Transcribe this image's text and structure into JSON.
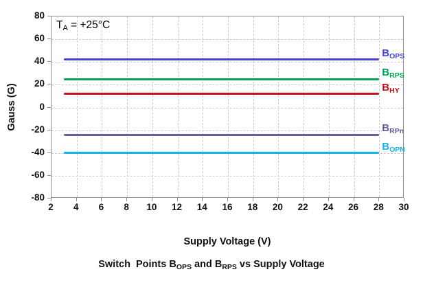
{
  "figure": {
    "background": "#ffffff",
    "grid_color": "#cccccc",
    "axis_border_color": "#8c8c8c",
    "text_color": "#111111"
  },
  "chart_data": {
    "type": "line",
    "title": "Switch Points BOPS and BRPS vs Supply Voltage",
    "title_segments": [
      {
        "text": "Switch  Points B"
      },
      {
        "sub": "OPS"
      },
      {
        "text": " and B"
      },
      {
        "sub": "RPS"
      },
      {
        "text": " vs Supply Voltage"
      }
    ],
    "xlabel": "Supply Voltage (V)",
    "ylabel": "Gauss (G)",
    "annotation": "TA = +25°C",
    "annotation_segments": [
      {
        "text": "T"
      },
      {
        "sub": "A"
      },
      {
        "text": " = +25°C"
      }
    ],
    "x_axis": {
      "min": 2,
      "max": 30,
      "ticks": [
        2,
        4,
        6,
        8,
        10,
        12,
        14,
        16,
        18,
        20,
        22,
        24,
        26,
        28,
        30
      ]
    },
    "y_axis": {
      "min": -80,
      "max": 80,
      "ticks": [
        80,
        60,
        40,
        20,
        0,
        -20,
        -40,
        -60,
        -80
      ]
    },
    "grid": true,
    "legend_position": "right-of-line-end",
    "x_data_start": 3,
    "x_data_end": 28,
    "series": [
      {
        "name": "BOPS",
        "label_main": "B",
        "label_sub": "OPS",
        "value": 42,
        "color": "#4343d4"
      },
      {
        "name": "BRPS",
        "label_main": "B",
        "label_sub": "RPS",
        "value": 25,
        "color": "#00a455"
      },
      {
        "name": "BHY",
        "label_main": "B",
        "label_sub": "HY",
        "value": 12,
        "color": "#c2131c"
      },
      {
        "name": "BRPn",
        "label_main": "B",
        "label_sub": "RPn",
        "value": -24,
        "color": "#6d5b9e"
      },
      {
        "name": "BOPN",
        "label_main": "B",
        "label_sub": "OPN",
        "value": -40,
        "color": "#16b3e8"
      }
    ]
  }
}
